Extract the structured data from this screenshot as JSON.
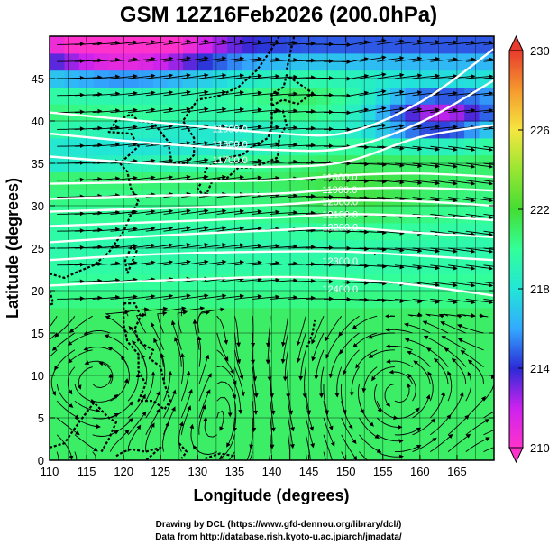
{
  "chart_data": {
    "type": "heatmap",
    "title": "GSM 12Z16Feb2026 (200.0hPa)",
    "xlabel": "Longitude (degrees)",
    "ylabel": "Latitude  (degrees)",
    "xlim": [
      110,
      170
    ],
    "ylim": [
      0,
      50
    ],
    "x_ticks": [
      110,
      115,
      120,
      125,
      130,
      135,
      140,
      145,
      150,
      155,
      160,
      165
    ],
    "y_ticks": [
      0,
      5,
      10,
      15,
      20,
      25,
      30,
      35,
      40,
      45
    ],
    "grid": true,
    "shaded_field": "temperature",
    "colorbar": {
      "range": [
        210,
        230
      ],
      "tick_labels": [
        210,
        214,
        218,
        222,
        226,
        230
      ],
      "colors": [
        "#ff33cc",
        "#cc22ee",
        "#2b2bd6",
        "#33aaff",
        "#22e6d6",
        "#33ff99",
        "#44dd33",
        "#99e633",
        "#f5e640",
        "#f59a2e",
        "#e83a2e"
      ]
    },
    "height_contours": [
      {
        "label": "11500.0",
        "label_lon": 132.0,
        "label_lat": 39.1,
        "y_at_lon": [
          [
            110,
            41.0
          ],
          [
            125,
            39.8
          ],
          [
            140,
            38.6
          ],
          [
            150,
            38.6
          ],
          [
            160,
            42.2
          ],
          [
            170,
            48.5
          ]
        ]
      },
      {
        "label": "11600.0",
        "label_lon": 132.0,
        "label_lat": 37.3,
        "y_at_lon": [
          [
            110,
            38.5
          ],
          [
            125,
            37.3
          ],
          [
            140,
            36.6
          ],
          [
            150,
            36.8
          ],
          [
            160,
            39.8
          ],
          [
            170,
            44.8
          ]
        ]
      },
      {
        "label": "11700.0",
        "label_lon": 132.0,
        "label_lat": 35.4,
        "y_at_lon": [
          [
            110,
            35.8
          ],
          [
            125,
            34.9
          ],
          [
            140,
            34.6
          ],
          [
            150,
            35.2
          ],
          [
            160,
            38.1
          ],
          [
            170,
            39.5
          ]
        ]
      },
      {
        "label": "11800.0",
        "label_lon": 146.8,
        "label_lat": 33.4,
        "y_at_lon": [
          [
            110,
            32.6
          ],
          [
            125,
            32.8
          ],
          [
            140,
            33.0
          ],
          [
            150,
            33.6
          ],
          [
            160,
            33.8
          ],
          [
            170,
            33.4
          ]
        ]
      },
      {
        "label": "11900.0",
        "label_lon": 146.8,
        "label_lat": 31.9,
        "y_at_lon": [
          [
            110,
            30.8
          ],
          [
            125,
            31.2
          ],
          [
            140,
            31.4
          ],
          [
            150,
            32.0
          ],
          [
            160,
            32.1
          ],
          [
            170,
            31.8
          ]
        ]
      },
      {
        "label": "12000.0",
        "label_lon": 146.8,
        "label_lat": 30.5,
        "y_at_lon": [
          [
            110,
            29.3
          ],
          [
            125,
            29.7
          ],
          [
            140,
            30.1
          ],
          [
            150,
            30.6
          ],
          [
            160,
            30.5
          ],
          [
            170,
            30.0
          ]
        ]
      },
      {
        "label": "12100.0",
        "label_lon": 146.8,
        "label_lat": 29.0,
        "y_at_lon": [
          [
            110,
            27.6
          ],
          [
            125,
            28.1
          ],
          [
            140,
            28.6
          ],
          [
            150,
            29.0
          ],
          [
            160,
            28.8
          ],
          [
            170,
            28.3
          ]
        ]
      },
      {
        "label": "12200.0",
        "label_lon": 146.8,
        "label_lat": 27.5,
        "y_at_lon": [
          [
            110,
            25.7
          ],
          [
            125,
            26.5
          ],
          [
            140,
            27.1
          ],
          [
            150,
            27.4
          ],
          [
            160,
            26.8
          ],
          [
            170,
            26.3
          ]
        ]
      },
      {
        "label": "12300.0",
        "label_lon": 146.8,
        "label_lat": 23.5,
        "y_at_lon": [
          [
            110,
            23.6
          ],
          [
            125,
            24.3
          ],
          [
            140,
            24.6
          ],
          [
            150,
            24.6
          ],
          [
            160,
            24.1
          ],
          [
            170,
            23.6
          ]
        ]
      },
      {
        "label": "12400.0",
        "label_lon": 146.8,
        "label_lat": 20.2,
        "y_at_lon": [
          [
            110,
            20.6
          ],
          [
            125,
            21.2
          ],
          [
            140,
            21.6
          ],
          [
            150,
            21.4
          ],
          [
            160,
            20.6
          ],
          [
            170,
            19.4
          ]
        ]
      }
    ]
  },
  "credits": {
    "line1": "Drawing by DCL (https://www.gfd-dennou.org/library/dcl/)",
    "line2": "Data from http://database.rish.kyoto-u.ac.jp/arch/jmadata/"
  }
}
